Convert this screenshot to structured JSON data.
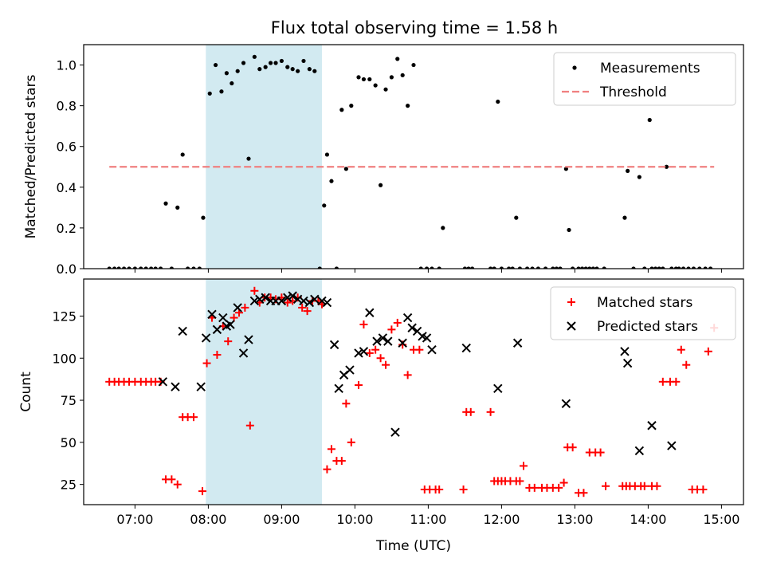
{
  "title": "Flux total observing time = 1.58 h",
  "chart_data": [
    {
      "type": "scatter",
      "panel": "top",
      "ylabel": "Matched/Predicted stars",
      "xlim": [
        6.3,
        15.3
      ],
      "ylim": [
        0,
        1.1
      ],
      "yticks": [
        0.0,
        0.2,
        0.4,
        0.6,
        0.8,
        1.0
      ],
      "ytick_labels": [
        "0.0",
        "0.2",
        "0.4",
        "0.6",
        "0.8",
        "1.0"
      ],
      "shaded_interval": {
        "start": "07:58",
        "end": "09:33",
        "color": "#add8e6"
      },
      "legend": {
        "placement": "top-right",
        "entries": [
          "Measurements",
          "Threshold"
        ]
      },
      "series": [
        {
          "name": "Measurements",
          "marker": "dot",
          "color": "#000000",
          "x": [
            6.65,
            6.72,
            6.78,
            6.85,
            6.92,
            7.0,
            7.08,
            7.15,
            7.22,
            7.28,
            7.35,
            7.42,
            7.5,
            7.58,
            7.65,
            7.72,
            7.8,
            7.88,
            7.93,
            8.02,
            8.1,
            8.18,
            8.25,
            8.32,
            8.4,
            8.48,
            8.55,
            8.63,
            8.7,
            8.78,
            8.85,
            8.92,
            9.0,
            9.08,
            9.15,
            9.22,
            9.3,
            9.38,
            9.45,
            9.52,
            9.58,
            9.62,
            9.68,
            9.75,
            9.82,
            9.88,
            9.95,
            10.05,
            10.12,
            10.2,
            10.28,
            10.35,
            10.42,
            10.5,
            10.58,
            10.65,
            10.72,
            10.8,
            10.9,
            10.98,
            11.05,
            11.15,
            11.2,
            11.5,
            11.55,
            11.6,
            11.85,
            11.9,
            11.95,
            12.0,
            12.1,
            12.15,
            12.2,
            12.25,
            12.35,
            12.42,
            12.5,
            12.6,
            12.7,
            12.75,
            12.8,
            12.88,
            12.92,
            12.97,
            13.05,
            13.1,
            13.15,
            13.2,
            13.25,
            13.3,
            13.4,
            13.68,
            13.72,
            13.8,
            13.88,
            13.95,
            14.02,
            14.05,
            14.1,
            14.15,
            14.2,
            14.25,
            14.32,
            14.38,
            14.42,
            14.48,
            14.55,
            14.62,
            14.7,
            14.78,
            14.85
          ],
          "y": [
            0,
            0,
            0,
            0,
            0,
            0,
            0,
            0,
            0,
            0,
            0,
            0.32,
            0,
            0.3,
            0.56,
            0,
            0,
            0,
            0.25,
            0.86,
            1.0,
            0.87,
            0.96,
            0.91,
            0.97,
            1.01,
            0.54,
            1.04,
            0.98,
            0.99,
            1.01,
            1.01,
            1.02,
            0.99,
            0.98,
            0.97,
            1.02,
            0.98,
            0.97,
            0,
            0.31,
            0.56,
            0.43,
            0,
            0.78,
            0.49,
            0.8,
            0.94,
            0.93,
            0.93,
            0.9,
            0.41,
            0.88,
            0.94,
            1.03,
            0.95,
            0.8,
            1.0,
            0,
            0,
            0,
            0,
            0.2,
            0,
            0,
            0,
            0,
            0,
            0.82,
            0,
            0,
            0,
            0.25,
            0,
            0,
            0,
            0,
            0,
            0,
            0,
            0,
            0.49,
            0.19,
            0,
            0,
            0,
            0,
            0,
            0,
            0,
            0,
            0.25,
            0.48,
            0,
            0.45,
            0,
            0.73,
            0,
            0,
            0,
            0,
            0.5,
            0,
            0,
            0,
            0,
            0,
            0,
            0,
            0,
            0
          ]
        },
        {
          "name": "Threshold",
          "style": "dashed",
          "color": "#f08080",
          "x": [
            6.65,
            14.9
          ],
          "y": [
            0.5,
            0.5
          ]
        }
      ]
    },
    {
      "type": "scatter",
      "panel": "bottom",
      "xlabel": "Time (UTC)",
      "ylabel": "Count",
      "xlim": [
        6.3,
        15.3
      ],
      "ylim": [
        13,
        147
      ],
      "yticks": [
        25,
        50,
        75,
        100,
        125
      ],
      "ytick_labels": [
        "25",
        "50",
        "75",
        "100",
        "125"
      ],
      "xticks": [
        7,
        8,
        9,
        10,
        11,
        12,
        13,
        14,
        15
      ],
      "xtick_labels": [
        "07:00",
        "08:00",
        "09:00",
        "10:00",
        "11:00",
        "12:00",
        "13:00",
        "14:00",
        "15:00"
      ],
      "shaded_interval": {
        "start": "07:58",
        "end": "09:33",
        "color": "#add8e6"
      },
      "legend": {
        "placement": "top-right",
        "entries": [
          "Matched stars",
          "Predicted stars"
        ]
      },
      "series": [
        {
          "name": "Matched stars",
          "marker": "plus",
          "color": "#ff0000",
          "x": [
            6.65,
            6.72,
            6.78,
            6.85,
            6.92,
            7.0,
            7.08,
            7.15,
            7.22,
            7.28,
            7.35,
            7.42,
            7.5,
            7.58,
            7.65,
            7.72,
            7.8,
            7.92,
            7.98,
            8.05,
            8.12,
            8.2,
            8.27,
            8.35,
            8.42,
            8.5,
            8.57,
            8.63,
            8.7,
            8.77,
            8.85,
            8.92,
            9.0,
            9.08,
            9.15,
            9.22,
            9.28,
            9.35,
            9.42,
            9.5,
            9.55,
            9.62,
            9.68,
            9.75,
            9.82,
            9.88,
            9.95,
            10.05,
            10.12,
            10.2,
            10.28,
            10.35,
            10.42,
            10.5,
            10.58,
            10.65,
            10.72,
            10.8,
            10.88,
            10.95,
            11.02,
            11.1,
            11.15,
            11.48,
            11.52,
            11.58,
            11.85,
            11.9,
            11.95,
            12.0,
            12.05,
            12.12,
            12.2,
            12.25,
            12.3,
            12.38,
            12.45,
            12.55,
            12.62,
            12.7,
            12.78,
            12.85,
            12.9,
            12.97,
            13.05,
            13.12,
            13.2,
            13.28,
            13.35,
            13.42,
            13.65,
            13.7,
            13.75,
            13.82,
            13.9,
            13.95,
            14.05,
            14.12,
            14.2,
            14.3,
            14.38,
            14.45,
            14.52,
            14.6,
            14.67,
            14.75,
            14.82,
            14.9
          ],
          "y": [
            86,
            86,
            86,
            86,
            86,
            86,
            86,
            86,
            86,
            86,
            86,
            28,
            28,
            25,
            65,
            65,
            65,
            21,
            97,
            124,
            102,
            119,
            110,
            124,
            127,
            130,
            60,
            140,
            133,
            136,
            136,
            135,
            136,
            133,
            134,
            136,
            130,
            128,
            134,
            134,
            132,
            34,
            46,
            39,
            39,
            73,
            50,
            84,
            120,
            103,
            105,
            100,
            96,
            117,
            121,
            108,
            90,
            105,
            105,
            22,
            22,
            22,
            22,
            22,
            68,
            68,
            68,
            27,
            27,
            27,
            27,
            27,
            27,
            27,
            36,
            23,
            23,
            23,
            23,
            23,
            23,
            26,
            47,
            47,
            20,
            20,
            44,
            44,
            44,
            24,
            24,
            24,
            24,
            24,
            24,
            24,
            24,
            24,
            86,
            86,
            86,
            105,
            96,
            22,
            22,
            22,
            104,
            118
          ]
        },
        {
          "name": "Predicted stars",
          "marker": "x",
          "color": "#000000",
          "x": [
            7.38,
            7.55,
            7.65,
            7.9,
            7.97,
            8.05,
            8.12,
            8.2,
            8.25,
            8.3,
            8.4,
            8.48,
            8.55,
            8.63,
            8.7,
            8.78,
            8.85,
            8.92,
            9.0,
            9.08,
            9.15,
            9.22,
            9.3,
            9.38,
            9.45,
            9.55,
            9.62,
            9.72,
            9.78,
            9.85,
            9.93,
            10.05,
            10.12,
            10.2,
            10.3,
            10.38,
            10.45,
            10.55,
            10.65,
            10.72,
            10.78,
            10.85,
            10.92,
            10.98,
            11.05,
            11.52,
            11.95,
            12.22,
            12.88,
            13.68,
            13.72,
            13.88,
            14.05,
            14.32
          ],
          "y": [
            86,
            83,
            116,
            83,
            112,
            126,
            117,
            124,
            119,
            120,
            130,
            103,
            111,
            134,
            135,
            136,
            134,
            134,
            134,
            136,
            137,
            135,
            134,
            133,
            135,
            134,
            133,
            108,
            82,
            90,
            93,
            103,
            104,
            127,
            110,
            112,
            110,
            56,
            109,
            124,
            118,
            116,
            113,
            112,
            105,
            106,
            82,
            109,
            73,
            104,
            97,
            45,
            60,
            48
          ]
        }
      ]
    }
  ]
}
